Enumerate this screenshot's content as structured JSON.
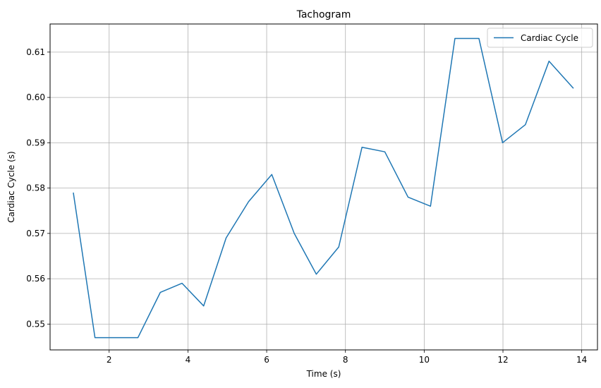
{
  "chart_data": {
    "type": "line",
    "title": "Tachogram",
    "xlabel": "Time (s)",
    "ylabel": "Cardiac Cycle (s)",
    "xlim": [
      0.5,
      14.4
    ],
    "ylim": [
      0.5443,
      0.6162
    ],
    "xticks": [
      2,
      4,
      6,
      8,
      10,
      12,
      14
    ],
    "yticks": [
      0.55,
      0.56,
      0.57,
      0.58,
      0.59,
      0.6,
      0.61
    ],
    "xtick_labels": [
      "2",
      "4",
      "6",
      "8",
      "10",
      "12",
      "14"
    ],
    "ytick_labels": [
      "0.55",
      "0.56",
      "0.57",
      "0.58",
      "0.59",
      "0.60",
      "0.61"
    ],
    "grid": true,
    "legend_position": "top-right",
    "series": [
      {
        "name": "Cardiac Cycle",
        "color": "#1f77b4",
        "x": [
          1.09,
          1.64,
          2.19,
          2.73,
          3.3,
          3.85,
          4.4,
          4.97,
          5.54,
          6.13,
          6.7,
          7.26,
          7.83,
          8.42,
          9.0,
          9.59,
          10.16,
          10.78,
          11.39,
          11.99,
          12.57,
          13.17,
          13.79
        ],
        "y": [
          0.579,
          0.547,
          0.547,
          0.547,
          0.557,
          0.559,
          0.554,
          0.569,
          0.577,
          0.583,
          0.57,
          0.561,
          0.567,
          0.589,
          0.588,
          0.578,
          0.576,
          0.613,
          0.613,
          0.59,
          0.594,
          0.608,
          0.602
        ]
      }
    ]
  }
}
